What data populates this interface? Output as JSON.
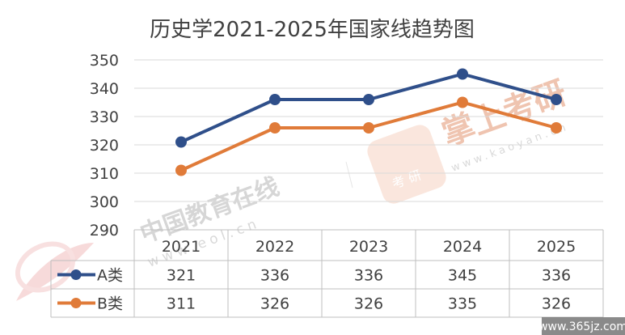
{
  "chart_data": {
    "type": "line",
    "title": "历史学2021-2025年国家线趋势图",
    "categories": [
      "2021",
      "2022",
      "2023",
      "2024",
      "2025"
    ],
    "yticks": [
      290,
      300,
      310,
      320,
      330,
      340,
      350
    ],
    "ylim": [
      290,
      350
    ],
    "grid": true,
    "legend": "data-table",
    "series": [
      {
        "name": "A类",
        "values": [
          321,
          336,
          336,
          345,
          336
        ],
        "color": "#2f4f8a"
      },
      {
        "name": "B类",
        "values": [
          311,
          326,
          326,
          335,
          326
        ],
        "color": "#e07b39"
      }
    ]
  },
  "watermarks": {
    "eol_name": "中国教育在线",
    "eol_url": "www.eol.cn",
    "kaoyan_brand": "掌上考研",
    "kaoyan_url": "www.kaoyan.cn",
    "kaoyan_badge": "考 研",
    "corner_site": "www.365jz.com"
  }
}
